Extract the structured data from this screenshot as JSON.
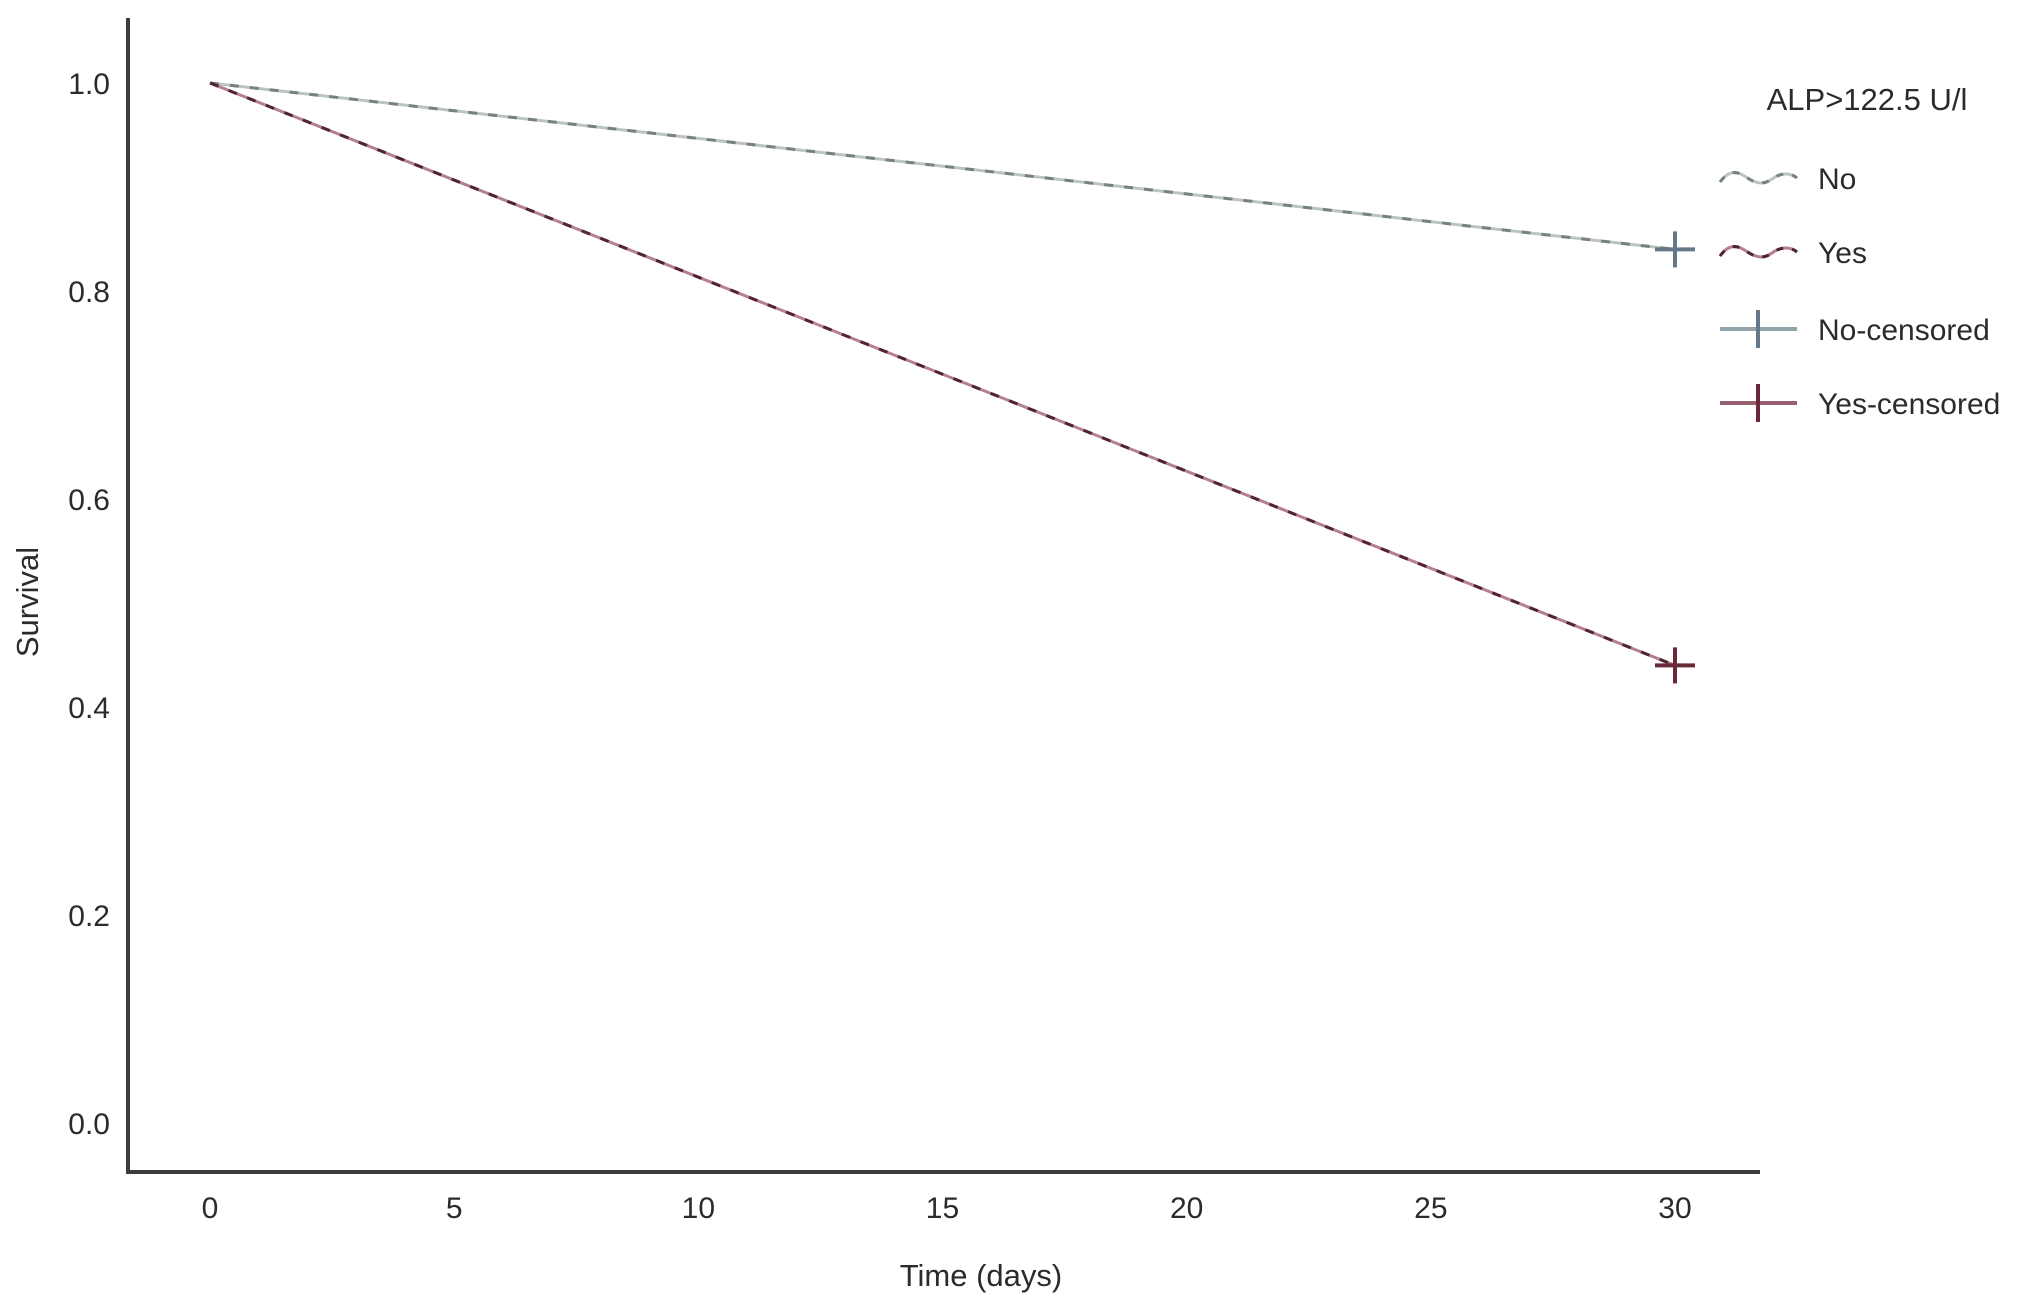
{
  "figure": {
    "background": "#ffffff",
    "axis_color": "#3d3d3d",
    "text_color": "#2b2b2b"
  },
  "chart_data": {
    "type": "line",
    "subtype": "kaplan-meier-survival",
    "title": "",
    "xlabel": "Time (days)",
    "ylabel": "Survival",
    "xlim": [
      0,
      30
    ],
    "ylim": [
      0.0,
      1.0
    ],
    "grid": false,
    "x_ticks": [
      0,
      5,
      10,
      15,
      20,
      25,
      30
    ],
    "x_tick_labels": [
      "0",
      "5",
      "10",
      "15",
      "20",
      "25",
      "30"
    ],
    "y_ticks": [
      0.0,
      0.2,
      0.4,
      0.6,
      0.8,
      1.0
    ],
    "y_tick_labels": [
      "0.0",
      "0.2",
      "0.4",
      "0.6",
      "0.8",
      "1.0"
    ],
    "series": [
      {
        "name": "No",
        "points": [
          [
            0,
            1.0
          ],
          [
            30,
            0.84
          ]
        ],
        "censored_points": [
          [
            30,
            0.84
          ]
        ],
        "base_color": "#bcc3c0",
        "dash_color": "#75827f",
        "censor_color": "#64788a"
      },
      {
        "name": "Yes",
        "points": [
          [
            0,
            1.0
          ],
          [
            30,
            0.44
          ]
        ],
        "censored_points": [
          [
            30,
            0.44
          ]
        ],
        "base_color": "#b5808d",
        "dash_color": "#512432",
        "censor_color": "#6b2838"
      }
    ],
    "legend": {
      "title": "ALP>122.5 U/l",
      "position": "top-right",
      "entries": [
        {
          "label": "No",
          "marker": "wavy-line",
          "line_color": "#bcc3c0",
          "accent_color": "#75827f"
        },
        {
          "label": "Yes",
          "marker": "wavy-line",
          "line_color": "#b5808d",
          "accent_color": "#512432"
        },
        {
          "label": "No-censored",
          "marker": "plus",
          "line_color": "#93a3ab",
          "accent_color": "#64788a"
        },
        {
          "label": "Yes-censored",
          "marker": "plus",
          "line_color": "#96606e",
          "accent_color": "#6b2838"
        }
      ]
    }
  }
}
